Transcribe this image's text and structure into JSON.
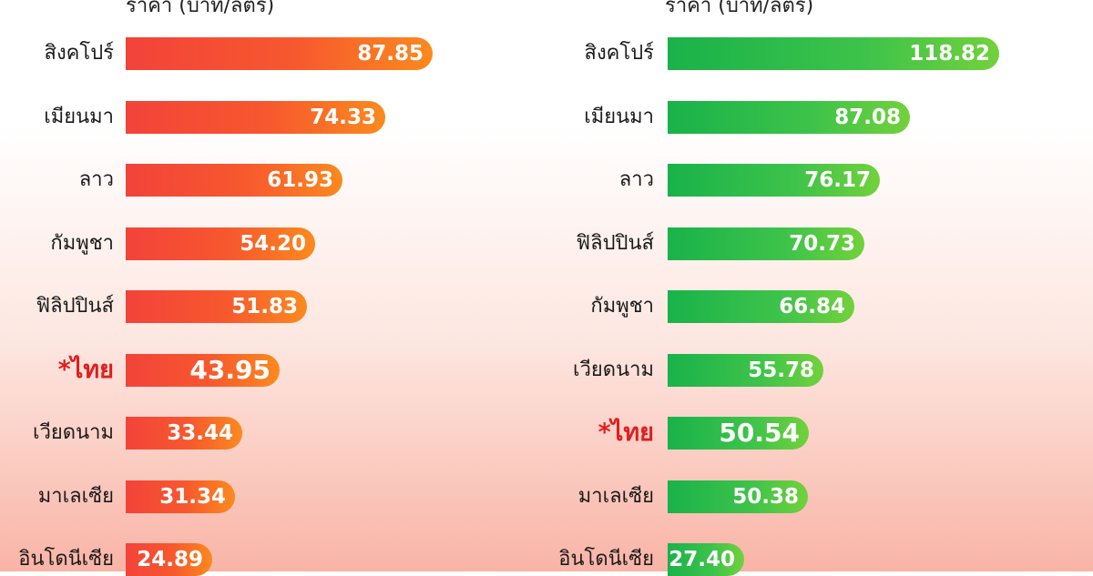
{
  "chart_data": [
    {
      "type": "bar",
      "orientation": "horizontal",
      "axis_title": "ราคา (บาท/ลิตร)",
      "categories": [
        "สิงคโปร์",
        "เมียนมา",
        "ลาว",
        "กัมพูชา",
        "ฟิลิปปินส์",
        "*ไทย",
        "เวียดนาม",
        "มาเลเซีย",
        "อินโดนีเซีย"
      ],
      "values": [
        87.85,
        74.33,
        61.93,
        54.2,
        51.83,
        43.95,
        33.44,
        31.34,
        24.89
      ],
      "value_labels": [
        "87.85",
        "74.33",
        "61.93",
        "54.20",
        "51.83",
        "43.95",
        "33.44",
        "31.34",
        "24.89"
      ],
      "highlight": "*ไทย",
      "bar_color": "#f7582e",
      "highlight_color": "#e01e1e"
    },
    {
      "type": "bar",
      "orientation": "horizontal",
      "axis_title": "ราคา (บาท/ลิตร)",
      "categories": [
        "สิงคโปร์",
        "เมียนมา",
        "ลาว",
        "ฟิลิปปินส์",
        "กัมพูชา",
        "เวียดนาม",
        "*ไทย",
        "มาเลเซีย",
        "อินโดนีเซีย"
      ],
      "values": [
        118.82,
        87.08,
        76.17,
        70.73,
        66.84,
        55.78,
        50.54,
        50.38,
        27.4
      ],
      "value_labels": [
        "118.82",
        "87.08",
        "76.17",
        "70.73",
        "66.84",
        "55.78",
        "50.54",
        "50.38",
        "27.40"
      ],
      "highlight": "*ไทย",
      "bar_color": "#3ec34a",
      "highlight_color": "#e01e1e"
    }
  ]
}
